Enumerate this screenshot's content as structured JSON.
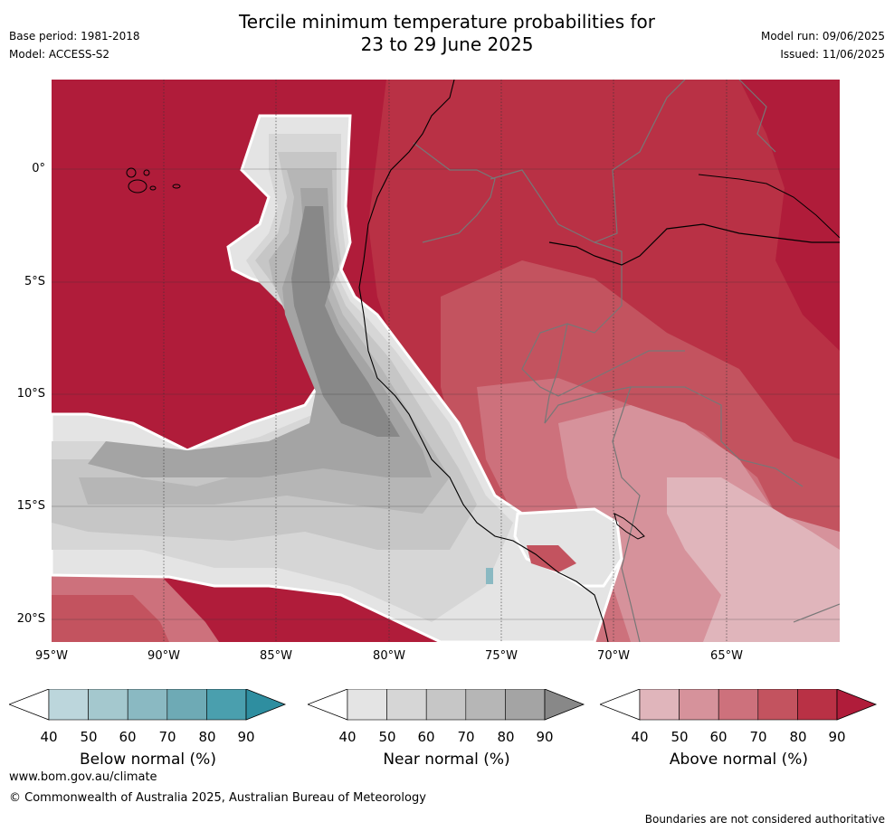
{
  "header": {
    "title_line1": "Tercile minimum temperature probabilities for",
    "title_line2": "23 to 29 June 2025",
    "base_period": "Base period: 1981-2018",
    "model": "Model: ACCESS-S2",
    "model_run": "Model run: 09/06/2025",
    "issued": "Issued: 11/06/2025"
  },
  "map": {
    "lat_labels": [
      "0°",
      "5°S",
      "10°S",
      "15°S",
      "20°S"
    ],
    "lon_labels": [
      "95°W",
      "90°W",
      "85°W",
      "80°W",
      "75°W",
      "70°W",
      "65°W"
    ],
    "colors": {
      "above": [
        "#e0b5bb",
        "#d6929b",
        "#cd717c",
        "#c3535f",
        "#b93145",
        "#b01c3a"
      ],
      "near": [
        "#e4e4e4",
        "#d6d6d6",
        "#c6c6c6",
        "#b6b6b6",
        "#a4a4a4",
        "#888888"
      ],
      "below": [
        "#bcd6dc",
        "#a4c8ce",
        "#8ab9c2",
        "#6eaab5",
        "#4a9fae",
        "#2e8ea0"
      ]
    }
  },
  "legends": [
    {
      "caption": "Below normal (%)",
      "ticks": [
        "40",
        "50",
        "60",
        "70",
        "80",
        "90"
      ],
      "colors": [
        "#bcd6dc",
        "#a4c8ce",
        "#8ab9c2",
        "#6eaab5",
        "#4a9fae",
        "#2e8ea0"
      ]
    },
    {
      "caption": "Near normal (%)",
      "ticks": [
        "40",
        "50",
        "60",
        "70",
        "80",
        "90"
      ],
      "colors": [
        "#e4e4e4",
        "#d6d6d6",
        "#c6c6c6",
        "#b6b6b6",
        "#a4a4a4",
        "#888888"
      ]
    },
    {
      "caption": "Above normal (%)",
      "ticks": [
        "40",
        "50",
        "60",
        "70",
        "80",
        "90"
      ],
      "colors": [
        "#e0b5bb",
        "#d6929b",
        "#cd717c",
        "#c3535f",
        "#b93145",
        "#b01c3a"
      ]
    }
  ],
  "footer": {
    "website": "www.bom.gov.au/climate",
    "copyright": "© Commonwealth of Australia 2025, Australian Bureau of Meteorology",
    "disclaimer": "Boundaries are not considered authoritative"
  }
}
